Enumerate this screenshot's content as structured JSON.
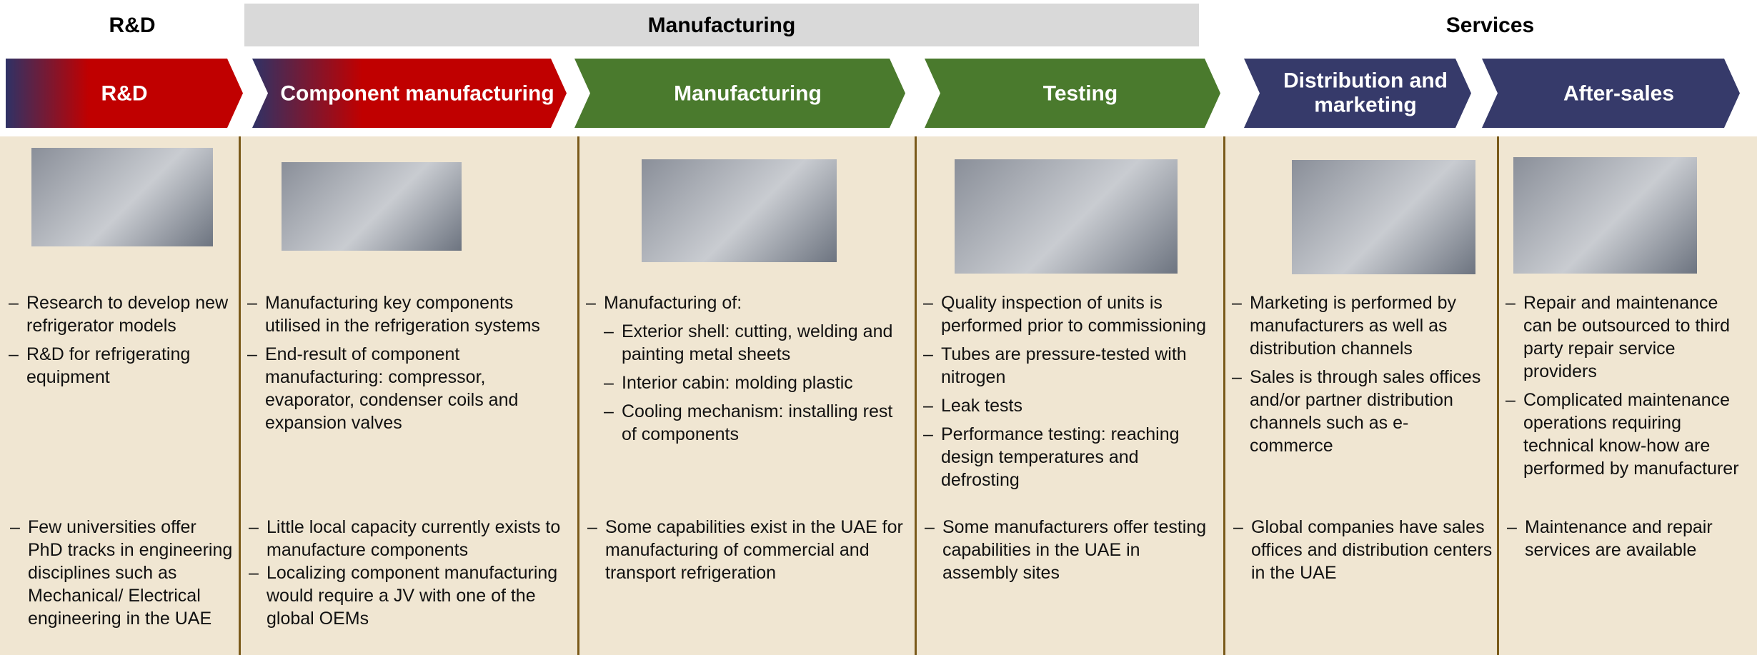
{
  "groups": [
    "R&D",
    "Manufacturing",
    "Services"
  ],
  "stages": [
    {
      "title": "R&D",
      "activities": [
        {
          "text": "Research to develop new refrigerator models"
        },
        {
          "text": "R&D for refrigerating equipment"
        }
      ],
      "uae": [
        "Few universities offer PhD tracks in engineering  disciplines such as Mechanical/ Electrical engineering in the UAE"
      ]
    },
    {
      "title": "Component manufacturing",
      "activities": [
        {
          "text": "Manufacturing key components utilised in the refrigeration systems"
        },
        {
          "text": "End-result of component manufacturing: compressor, evaporator, condenser coils and expansion valves"
        }
      ],
      "uae": [
        "Little local capacity currently exists to manufacture components",
        "Localizing component manufacturing would require a JV with one of the global OEMs"
      ]
    },
    {
      "title": "Manufacturing",
      "activities": [
        {
          "text": "Manufacturing of:",
          "items": [
            "Exterior shell: cutting, welding and painting metal sheets",
            "Interior cabin: molding plastic",
            "Cooling mechanism: installing rest of components"
          ]
        }
      ],
      "uae": [
        "Some capabilities exist in the UAE for manufacturing of commercial and transport refrigeration"
      ]
    },
    {
      "title": "Testing",
      "activities": [
        {
          "text": "Quality inspection of units is performed prior to commissioning"
        },
        {
          "text": "Tubes are pressure-tested with nitrogen"
        },
        {
          "text": "Leak tests"
        },
        {
          "text": "Performance testing: reaching design temperatures and defrosting"
        }
      ],
      "uae": [
        "Some manufacturers offer testing capabilities in the UAE in assembly sites"
      ]
    },
    {
      "title": "Distribution and marketing",
      "activities": [
        {
          "text": "Marketing is performed by manufacturers as well as distribution channels"
        },
        {
          "text": "Sales is through sales offices and/or partner distribution channels such as e-commerce"
        }
      ],
      "uae": [
        "Global companies have sales offices and distribution centers in the UAE"
      ]
    },
    {
      "title": "After-sales",
      "activities": [
        {
          "text": "Repair and maintenance can be outsourced to third party repair service providers"
        },
        {
          "text": "Complicated maintenance operations requiring technical know-how are performed by manufacturer"
        }
      ],
      "uae": [
        "Maintenance and repair services are available"
      ]
    }
  ]
}
